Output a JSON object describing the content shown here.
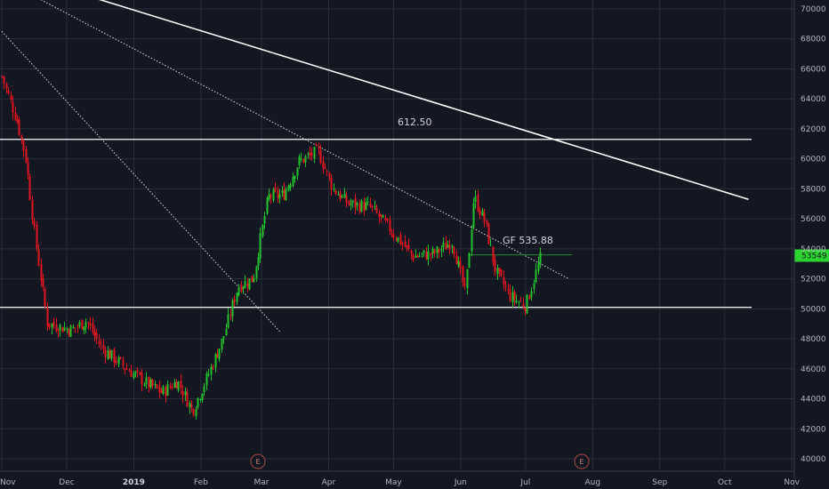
{
  "colors": {
    "background": "#131722",
    "grid": "#2a2e39",
    "up": "#26a69a",
    "up_bright": "#22c02c",
    "down": "#e0151f",
    "axis_text": "#b2b5be",
    "line": "#ffffff",
    "price_tag": "#2bd42f",
    "earnings": "#a74a40"
  },
  "chart_data": {
    "type": "candlestick",
    "title": "",
    "xlabel": "",
    "ylabel": "",
    "grid": true,
    "ylim": [
      39500,
      71000
    ],
    "y_ticks": [
      40000,
      42000,
      44000,
      46000,
      48000,
      50000,
      52000,
      54000,
      56000,
      58000,
      60000,
      62000,
      64000,
      66000,
      68000,
      70000
    ],
    "x_ticks": [
      {
        "label": "Nov",
        "bold": false
      },
      {
        "label": "Dec",
        "bold": false
      },
      {
        "label": "2019",
        "bold": true
      },
      {
        "label": "Feb",
        "bold": false
      },
      {
        "label": "Mar",
        "bold": false
      },
      {
        "label": "Apr",
        "bold": false
      },
      {
        "label": "May",
        "bold": false
      },
      {
        "label": "Jun",
        "bold": false
      },
      {
        "label": "Jul",
        "bold": false
      },
      {
        "label": "Aug",
        "bold": false
      },
      {
        "label": "Sep",
        "bold": false
      },
      {
        "label": "Oct",
        "bold": false
      },
      {
        "label": "Nov",
        "bold": false
      }
    ],
    "last_price": "53549",
    "last_value": 53549,
    "key_points": [
      {
        "date": "2018-11-01",
        "price": 65500
      },
      {
        "date": "2018-11-08",
        "price": 62500
      },
      {
        "date": "2018-11-12",
        "price": 60000
      },
      {
        "date": "2018-11-16",
        "price": 55000
      },
      {
        "date": "2018-11-22",
        "price": 49000
      },
      {
        "date": "2018-12-03",
        "price": 48600
      },
      {
        "date": "2018-12-10",
        "price": 49200
      },
      {
        "date": "2018-12-17",
        "price": 47400
      },
      {
        "date": "2018-12-26",
        "price": 46300
      },
      {
        "date": "2019-01-07",
        "price": 45000
      },
      {
        "date": "2019-01-14",
        "price": 44400
      },
      {
        "date": "2019-01-21",
        "price": 45200
      },
      {
        "date": "2019-01-28",
        "price": 43200
      },
      {
        "date": "2019-02-04",
        "price": 45500
      },
      {
        "date": "2019-02-11",
        "price": 48000
      },
      {
        "date": "2019-02-18",
        "price": 51500
      },
      {
        "date": "2019-02-25",
        "price": 52000
      },
      {
        "date": "2019-03-04",
        "price": 57500
      },
      {
        "date": "2019-03-11",
        "price": 57600
      },
      {
        "date": "2019-03-18",
        "price": 59800
      },
      {
        "date": "2019-03-27",
        "price": 60500
      },
      {
        "date": "2019-04-03",
        "price": 58000
      },
      {
        "date": "2019-04-10",
        "price": 57000
      },
      {
        "date": "2019-04-20",
        "price": 56800
      },
      {
        "date": "2019-05-01",
        "price": 55000
      },
      {
        "date": "2019-05-10",
        "price": 53500
      },
      {
        "date": "2019-05-20",
        "price": 53700
      },
      {
        "date": "2019-05-28",
        "price": 54500
      },
      {
        "date": "2019-06-03",
        "price": 51000
      },
      {
        "date": "2019-06-07",
        "price": 57500
      },
      {
        "date": "2019-06-12",
        "price": 55800
      },
      {
        "date": "2019-06-17",
        "price": 52500
      },
      {
        "date": "2019-06-24",
        "price": 50800
      },
      {
        "date": "2019-07-01",
        "price": 50200
      },
      {
        "date": "2019-07-08",
        "price": 53549
      }
    ],
    "annotations": {
      "label_612": "612.50",
      "label_gf": "GF 535.88",
      "earnings_marker": "E"
    },
    "horizontal_lines": [
      61300,
      50100
    ],
    "green_line": 53600,
    "trendlines": [
      {
        "name": "solid-downtrend",
        "from": [
          "2018-11-04",
          72500
        ],
        "to": [
          "2019-10-12",
          57300
        ]
      },
      {
        "name": "dotted-upper",
        "from": [
          "2018-11-14",
          71000
        ],
        "to": [
          "2019-07-21",
          52000
        ]
      },
      {
        "name": "dotted-lower",
        "from": [
          "2018-11-01",
          68500
        ],
        "to": [
          "2019-03-10",
          48400
        ]
      }
    ]
  }
}
